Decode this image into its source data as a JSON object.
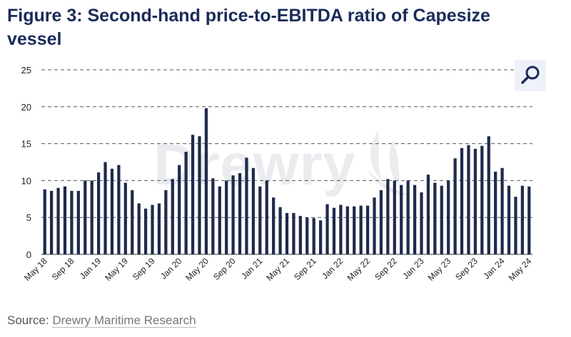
{
  "title": "Figure 3: Second-hand price-to-EBITDA ratio of Capesize vessel",
  "watermark_text": "Drewry",
  "source": {
    "prefix": "Source:",
    "name": "Drewry Maritime Research"
  },
  "zoom_icon": "magnifier-icon",
  "colors": {
    "title": "#1a2b58",
    "bar": "#1f2a4d",
    "grid": "#555555",
    "zoom_bg": "#eef1f7"
  },
  "chart_data": {
    "type": "bar",
    "title": "",
    "xlabel": "",
    "ylabel": "",
    "ylim": [
      0,
      25
    ],
    "yticks": [
      0,
      5,
      10,
      15,
      20,
      25
    ],
    "grid": "horizontal dashed",
    "categories": [
      "May 18",
      "Jun 18",
      "Jul 18",
      "Aug 18",
      "Sep 18",
      "Oct 18",
      "Nov 18",
      "Dec 18",
      "Jan 19",
      "Feb 19",
      "Mar 19",
      "Apr 19",
      "May 19",
      "Jun 19",
      "Jul 19",
      "Aug 19",
      "Sep 19",
      "Oct 19",
      "Nov 19",
      "Dec 19",
      "Jan 20",
      "Feb 20",
      "Mar 20",
      "Apr 20",
      "May 20",
      "Jun 20",
      "Jul 20",
      "Aug 20",
      "Sep 20",
      "Oct 20",
      "Nov 20",
      "Dec 20",
      "Jan 21",
      "Feb 21",
      "Mar 21",
      "Apr 21",
      "May 21",
      "Jun 21",
      "Jul 21",
      "Aug 21",
      "Sep 21",
      "Oct 21",
      "Nov 21",
      "Dec 21",
      "Jan 22",
      "Feb 22",
      "Mar 22",
      "Apr 22",
      "May 22",
      "Jun 22",
      "Jul 22",
      "Aug 22",
      "Sep 22",
      "Oct 22",
      "Nov 22",
      "Dec 22",
      "Jan 23",
      "Feb 23",
      "Mar 23",
      "Apr 23",
      "May 23",
      "Jun 23",
      "Jul 23",
      "Aug 23",
      "Sep 23",
      "Oct 23",
      "Nov 23",
      "Dec 23",
      "Jan 24",
      "Feb 24",
      "Mar 24",
      "Apr 24",
      "May 24"
    ],
    "xtick_labels": [
      "May 18",
      "Sep 18",
      "Jan 19",
      "May 19",
      "Sep 19",
      "Jan 20",
      "May 20",
      "Sep 20",
      "Jan 21",
      "May 21",
      "Sep 21",
      "Jan 22",
      "May 22",
      "Sep 22",
      "Jan 23",
      "May 23",
      "Sep 23",
      "Jan 24",
      "May 24"
    ],
    "values": [
      8.8,
      8.6,
      9.0,
      9.2,
      8.6,
      8.6,
      10.0,
      10.0,
      11.1,
      12.5,
      11.6,
      12.1,
      9.7,
      8.7,
      6.9,
      6.2,
      6.7,
      6.9,
      8.7,
      10.2,
      12.1,
      13.9,
      16.2,
      16.0,
      19.8,
      10.3,
      9.2,
      10.0,
      10.7,
      11.0,
      13.1,
      11.7,
      9.2,
      10.0,
      7.7,
      6.4,
      5.6,
      5.6,
      5.2,
      5.0,
      4.9,
      4.6,
      6.8,
      6.3,
      6.7,
      6.5,
      6.5,
      6.6,
      6.6,
      7.7,
      8.7,
      10.2,
      10.0,
      9.4,
      10.0,
      9.4,
      8.4,
      10.8,
      9.7,
      9.3,
      10.0,
      13.0,
      14.4,
      14.8,
      14.3,
      14.7,
      16.0,
      11.2,
      11.7,
      9.3,
      7.8,
      9.3,
      9.2
    ]
  }
}
